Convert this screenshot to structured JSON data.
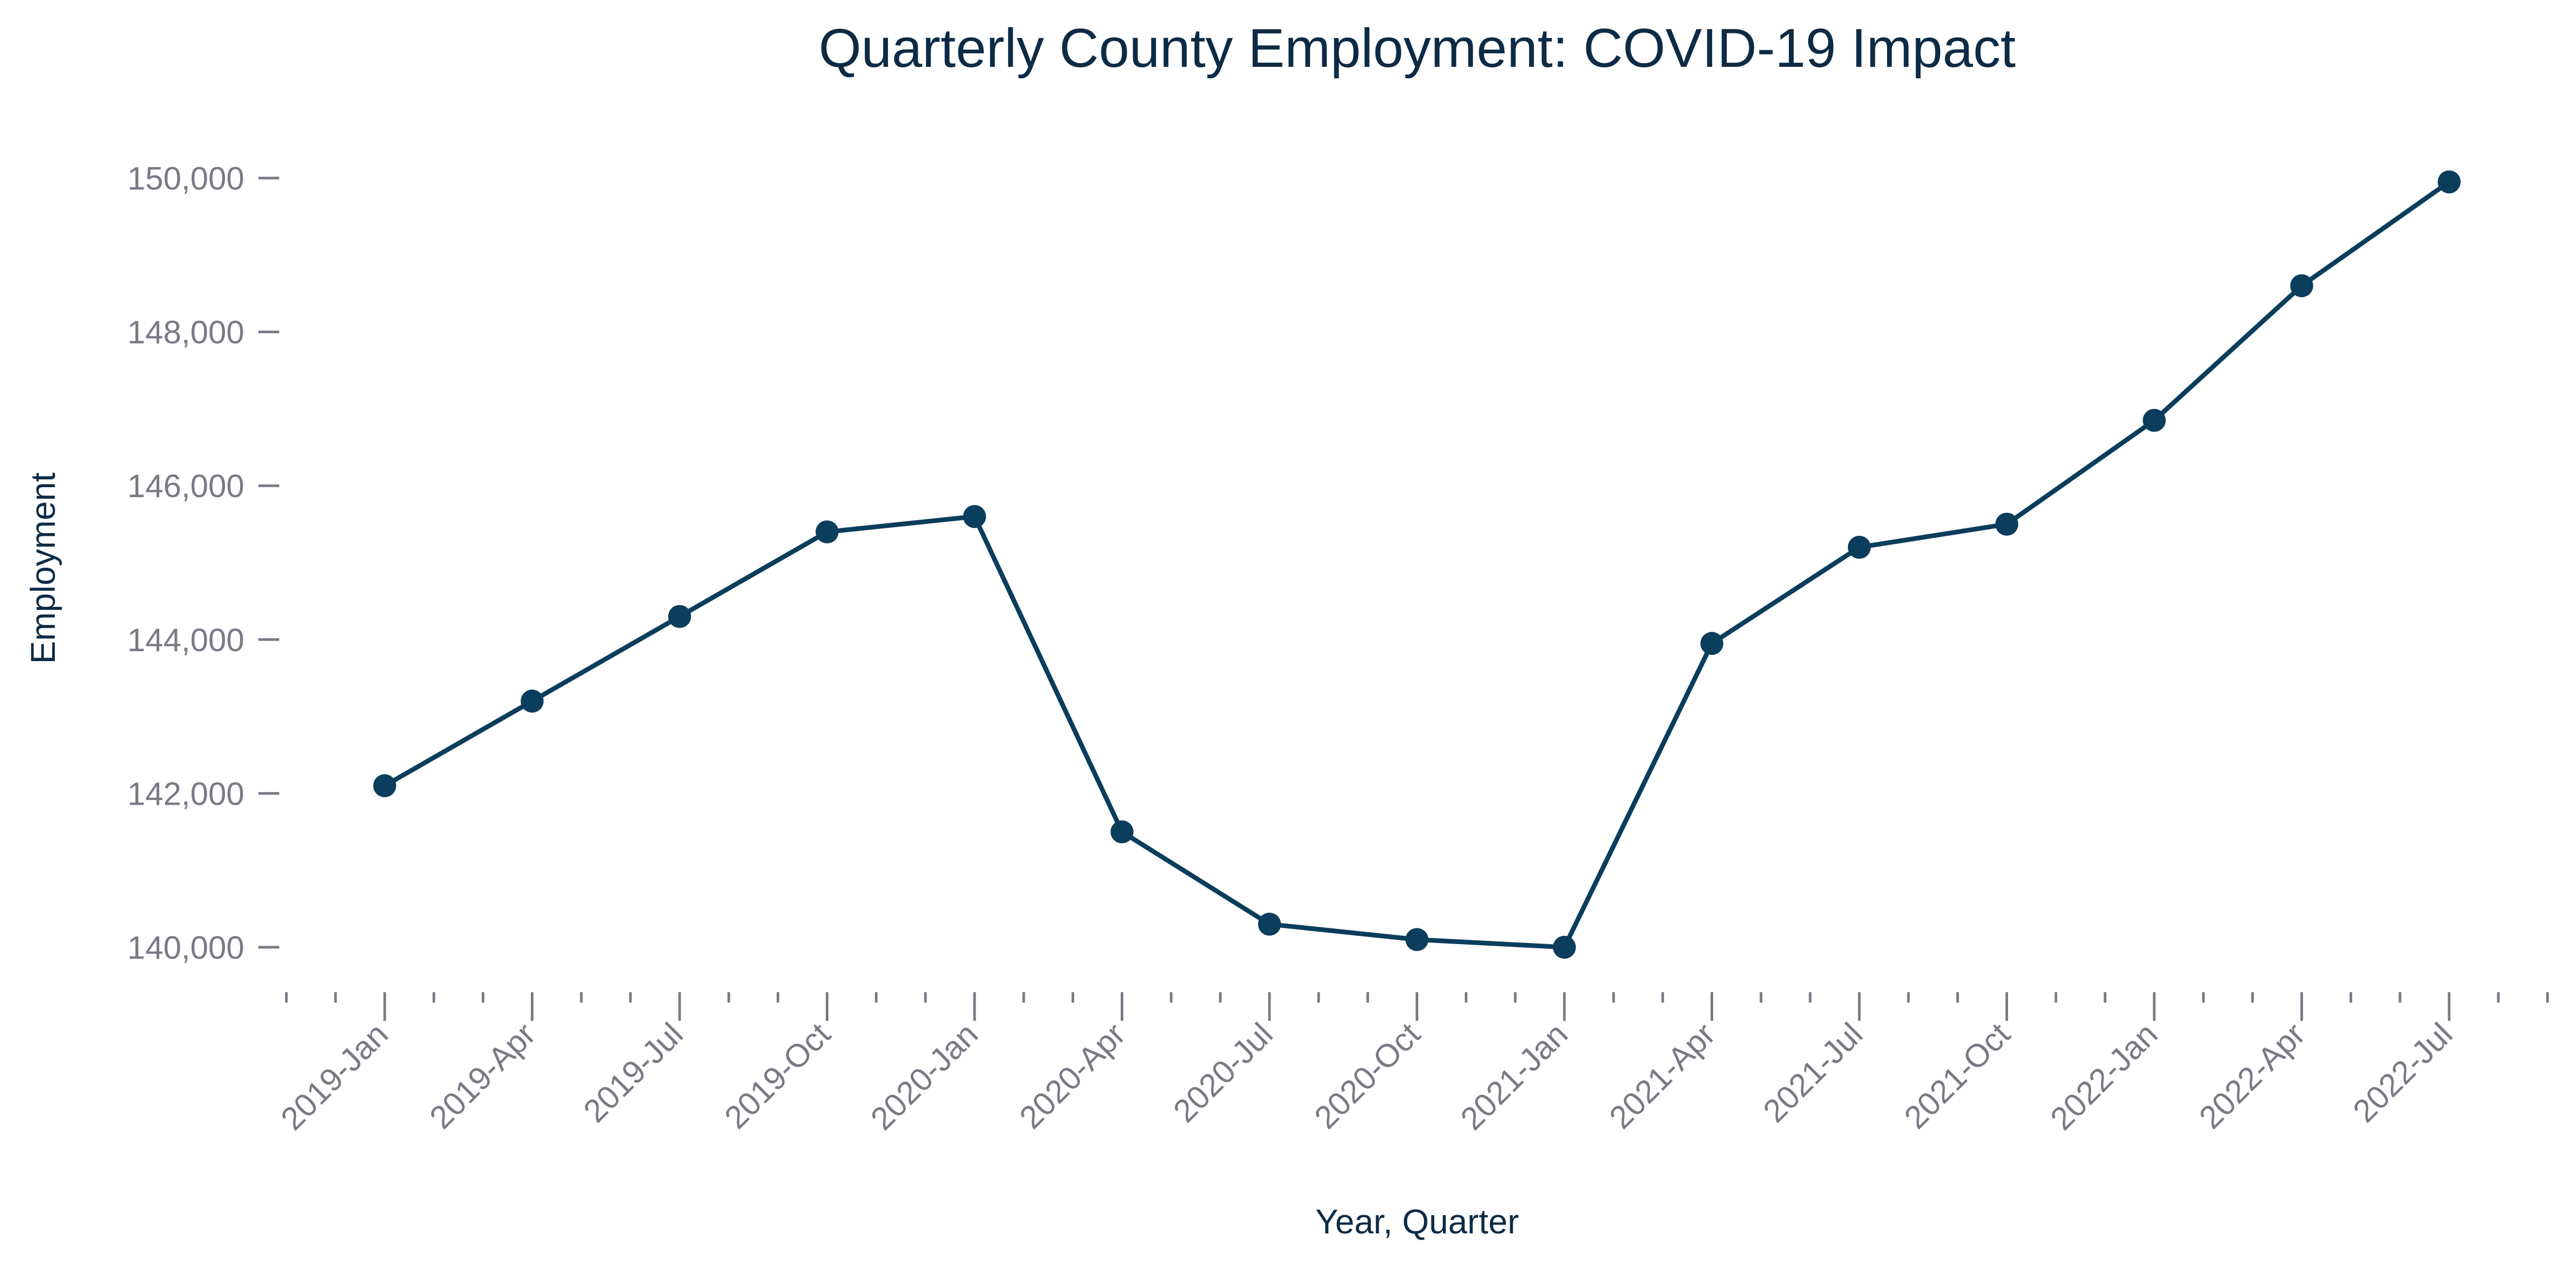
{
  "chart_data": {
    "type": "line",
    "title": "Quarterly County Employment: COVID-19 Impact",
    "xlabel": "Year, Quarter",
    "ylabel": "Employment",
    "categories": [
      "2019-Jan",
      "2019-Apr",
      "2019-Jul",
      "2019-Oct",
      "2020-Jan",
      "2020-Apr",
      "2020-Jul",
      "2020-Oct",
      "2021-Jan",
      "2021-Apr",
      "2021-Jul",
      "2021-Oct",
      "2022-Jan",
      "2022-Apr",
      "2022-Jul"
    ],
    "series": [
      {
        "values": [
          142100,
          143200,
          144300,
          145400,
          145600,
          141500,
          140300,
          140100,
          140000,
          143950,
          145200,
          145500,
          146850,
          148600,
          149950
        ]
      }
    ],
    "ylim": [
      139800,
      150500
    ],
    "yticks": [
      140000,
      142000,
      144000,
      146000,
      148000,
      150000
    ],
    "ytick_labels": [
      "140,000",
      "142,000",
      "144,000",
      "146,000",
      "148,000",
      "150,000"
    ],
    "grid": false,
    "legend": "none",
    "colors": {
      "line": "#0b3d5c",
      "marker": "#0b3d5c",
      "title": "#0d2b45",
      "tick_text": "#7a7a85"
    }
  }
}
